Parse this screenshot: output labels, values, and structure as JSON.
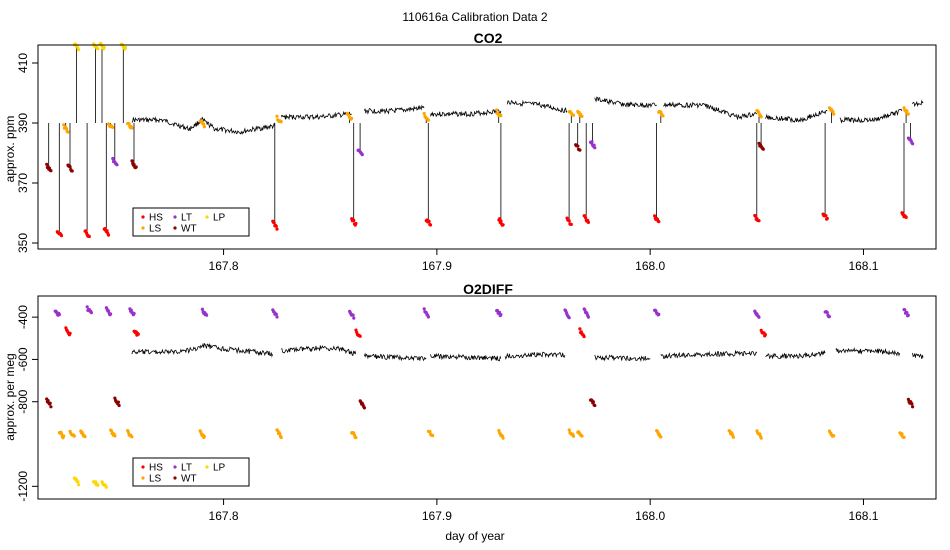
{
  "figure": {
    "suptitle": "110616a   Calibration Data 2"
  },
  "legend": {
    "entries": [
      {
        "label": "HS",
        "color": "#ff0000"
      },
      {
        "label": "LS",
        "color": "#ffa500"
      },
      {
        "label": "LT",
        "color": "#9932cc"
      },
      {
        "label": "WT",
        "color": "#8b0000"
      },
      {
        "label": "LP",
        "color": "#ffd700"
      }
    ]
  },
  "chart_data": [
    {
      "type": "line",
      "title": "CO2",
      "xlabel": "",
      "ylabel": "approx. ppm",
      "xlim": [
        167.713,
        168.134
      ],
      "ylim": [
        348,
        416
      ],
      "x_ticks": [
        167.8,
        167.9,
        168.0,
        168.1
      ],
      "x_tick_labels": [
        "167.8",
        "167.9",
        "168.0",
        "168.1"
      ],
      "y_ticks": [
        350,
        370,
        390,
        410
      ],
      "y_tick_labels": [
        "350",
        "370",
        "390",
        "410"
      ],
      "grid": false,
      "legend_position": "bottom-left",
      "ambient_segments": [
        {
          "x": [
            167.757,
            167.771,
            167.784,
            167.79,
            167.796,
            167.808,
            167.815,
            167.824
          ],
          "y": [
            391,
            391,
            388,
            391,
            388,
            387,
            388,
            389
          ]
        },
        {
          "x": [
            167.827,
            167.845,
            167.86
          ],
          "y": [
            392,
            392,
            393
          ]
        },
        {
          "x": [
            167.866,
            167.88,
            167.894
          ],
          "y": [
            394,
            394,
            395
          ]
        },
        {
          "x": [
            167.897,
            167.915,
            167.93
          ],
          "y": [
            393,
            393,
            394
          ]
        },
        {
          "x": [
            167.933,
            167.948,
            167.961
          ],
          "y": [
            397,
            396,
            394
          ]
        },
        {
          "x": [
            167.974,
            167.989,
            168.003
          ],
          "y": [
            398,
            396,
            396
          ]
        },
        {
          "x": [
            168.006,
            168.025,
            168.041,
            168.05
          ],
          "y": [
            396,
            396,
            392,
            393
          ]
        },
        {
          "x": [
            168.054,
            168.07,
            168.083
          ],
          "y": [
            392,
            391,
            394
          ]
        },
        {
          "x": [
            168.089,
            168.105,
            168.118
          ],
          "y": [
            391,
            391,
            394
          ]
        },
        {
          "x": [
            168.123,
            168.128
          ],
          "y": [
            396,
            397
          ]
        }
      ],
      "calibrations": [
        {
          "type": "WT",
          "x": 167.718,
          "y": 375
        },
        {
          "type": "HS",
          "x": 167.723,
          "y": 353
        },
        {
          "type": "LS",
          "x": 167.726,
          "y": 388
        },
        {
          "type": "WT",
          "x": 167.728,
          "y": 375
        },
        {
          "type": "LP",
          "x": 167.731,
          "y": 419
        },
        {
          "type": "HS",
          "x": 167.736,
          "y": 353
        },
        {
          "type": "LP",
          "x": 167.74,
          "y": 419
        },
        {
          "type": "LP",
          "x": 167.743,
          "y": 419
        },
        {
          "type": "HS",
          "x": 167.745,
          "y": 354
        },
        {
          "type": "LS",
          "x": 167.747,
          "y": 389
        },
        {
          "type": "LT",
          "x": 167.749,
          "y": 377
        },
        {
          "type": "LP",
          "x": 167.753,
          "y": 419
        },
        {
          "type": "LS",
          "x": 167.756,
          "y": 389
        },
        {
          "type": "WT",
          "x": 167.758,
          "y": 376
        },
        {
          "type": "LS",
          "x": 167.79,
          "y": 390
        },
        {
          "type": "HS",
          "x": 167.824,
          "y": 356
        },
        {
          "type": "LS",
          "x": 167.826,
          "y": 391
        },
        {
          "type": "LS",
          "x": 167.859,
          "y": 392
        },
        {
          "type": "HS",
          "x": 167.861,
          "y": 357
        },
        {
          "type": "LT",
          "x": 167.864,
          "y": 380
        },
        {
          "type": "LS",
          "x": 167.895,
          "y": 392
        },
        {
          "type": "HS",
          "x": 167.896,
          "y": 357
        },
        {
          "type": "LS",
          "x": 167.929,
          "y": 393
        },
        {
          "type": "HS",
          "x": 167.93,
          "y": 357
        },
        {
          "type": "HS",
          "x": 167.962,
          "y": 357
        },
        {
          "type": "LS",
          "x": 167.963,
          "y": 393
        },
        {
          "type": "WT",
          "x": 167.966,
          "y": 382
        },
        {
          "type": "LS",
          "x": 167.967,
          "y": 393
        },
        {
          "type": "HS",
          "x": 167.97,
          "y": 358
        },
        {
          "type": "LT",
          "x": 167.973,
          "y": 383
        },
        {
          "type": "HS",
          "x": 168.003,
          "y": 358
        },
        {
          "type": "LS",
          "x": 168.005,
          "y": 393
        },
        {
          "type": "HS",
          "x": 168.05,
          "y": 358
        },
        {
          "type": "LS",
          "x": 168.051,
          "y": 393
        },
        {
          "type": "WT",
          "x": 168.052,
          "y": 382
        },
        {
          "type": "HS",
          "x": 168.082,
          "y": 359
        },
        {
          "type": "LS",
          "x": 168.085,
          "y": 394
        },
        {
          "type": "HS",
          "x": 168.119,
          "y": 359
        },
        {
          "type": "LS",
          "x": 168.12,
          "y": 394
        },
        {
          "type": "LT",
          "x": 168.122,
          "y": 384
        }
      ]
    },
    {
      "type": "line",
      "title": "O2DIFF",
      "xlabel": "day of year",
      "ylabel": "approx. per meg",
      "xlim": [
        167.713,
        168.134
      ],
      "ylim": [
        -1260,
        -300
      ],
      "x_ticks": [
        167.8,
        167.9,
        168.0,
        168.1
      ],
      "x_tick_labels": [
        "167.8",
        "167.9",
        "168.0",
        "168.1"
      ],
      "y_ticks": [
        -1200,
        -800,
        -600,
        -400
      ],
      "y_tick_labels": [
        "-1200",
        "-800",
        "-600",
        "-400"
      ],
      "grid": false,
      "legend_position": "bottom-left",
      "ambient_segments": [
        {
          "x": [
            167.757,
            167.775,
            167.785,
            167.791,
            167.8,
            167.815,
            167.823
          ],
          "y": [
            -565,
            -565,
            -555,
            -535,
            -550,
            -565,
            -575
          ]
        },
        {
          "x": [
            167.827,
            167.845,
            167.855,
            167.862
          ],
          "y": [
            -560,
            -545,
            -550,
            -575
          ]
        },
        {
          "x": [
            167.866,
            167.88,
            167.895
          ],
          "y": [
            -585,
            -590,
            -595
          ]
        },
        {
          "x": [
            167.897,
            167.915,
            167.93
          ],
          "y": [
            -585,
            -590,
            -595
          ]
        },
        {
          "x": [
            167.932,
            167.948,
            167.96
          ],
          "y": [
            -585,
            -575,
            -580
          ]
        },
        {
          "x": [
            167.974,
            167.99,
            168.0
          ],
          "y": [
            -590,
            -595,
            -595
          ]
        },
        {
          "x": [
            168.005,
            168.03,
            168.05
          ],
          "y": [
            -585,
            -575,
            -570
          ]
        },
        {
          "x": [
            168.054,
            168.07,
            168.082
          ],
          "y": [
            -585,
            -585,
            -570
          ]
        },
        {
          "x": [
            168.087,
            168.105,
            168.117
          ],
          "y": [
            -560,
            -560,
            -570
          ]
        },
        {
          "x": [
            168.123,
            168.128
          ],
          "y": [
            -580,
            -590
          ]
        }
      ],
      "calibrations": [
        {
          "type": "WT",
          "x": 167.718,
          "y": -805
        },
        {
          "type": "LT",
          "x": 167.722,
          "y": -380
        },
        {
          "type": "LS",
          "x": 167.724,
          "y": -955
        },
        {
          "type": "HS",
          "x": 167.727,
          "y": -470
        },
        {
          "type": "LS",
          "x": 167.729,
          "y": -955
        },
        {
          "type": "LP",
          "x": 167.731,
          "y": -1175
        },
        {
          "type": "LS",
          "x": 167.734,
          "y": -955
        },
        {
          "type": "LT",
          "x": 167.737,
          "y": -370
        },
        {
          "type": "LP",
          "x": 167.74,
          "y": -1185
        },
        {
          "type": "LP",
          "x": 167.744,
          "y": -1190
        },
        {
          "type": "LT",
          "x": 167.746,
          "y": -375
        },
        {
          "type": "LS",
          "x": 167.748,
          "y": -950
        },
        {
          "type": "WT",
          "x": 167.75,
          "y": -800
        },
        {
          "type": "LS",
          "x": 167.756,
          "y": -955
        },
        {
          "type": "LT",
          "x": 167.757,
          "y": -375
        },
        {
          "type": "HS",
          "x": 167.759,
          "y": -475
        },
        {
          "type": "LS",
          "x": 167.79,
          "y": -955
        },
        {
          "type": "LT",
          "x": 167.791,
          "y": -380
        },
        {
          "type": "LT",
          "x": 167.824,
          "y": -380
        },
        {
          "type": "LS",
          "x": 167.826,
          "y": -950
        },
        {
          "type": "LT",
          "x": 167.86,
          "y": -385
        },
        {
          "type": "LS",
          "x": 167.861,
          "y": -955
        },
        {
          "type": "HS",
          "x": 167.863,
          "y": -480
        },
        {
          "type": "WT",
          "x": 167.865,
          "y": -810
        },
        {
          "type": "LT",
          "x": 167.895,
          "y": -380
        },
        {
          "type": "LS",
          "x": 167.897,
          "y": -950
        },
        {
          "type": "LT",
          "x": 167.929,
          "y": -380
        },
        {
          "type": "LS",
          "x": 167.93,
          "y": -955
        },
        {
          "type": "LT",
          "x": 167.961,
          "y": -385
        },
        {
          "type": "LS",
          "x": 167.963,
          "y": -950
        },
        {
          "type": "LS",
          "x": 167.967,
          "y": -955
        },
        {
          "type": "HS",
          "x": 167.968,
          "y": -475
        },
        {
          "type": "LT",
          "x": 167.97,
          "y": -380
        },
        {
          "type": "WT",
          "x": 167.973,
          "y": -800
        },
        {
          "type": "LT",
          "x": 168.003,
          "y": -380
        },
        {
          "type": "LS",
          "x": 168.004,
          "y": -955
        },
        {
          "type": "LS",
          "x": 168.038,
          "y": -950
        },
        {
          "type": "LT",
          "x": 168.05,
          "y": -385
        },
        {
          "type": "LS",
          "x": 168.051,
          "y": -955
        },
        {
          "type": "HS",
          "x": 168.053,
          "y": -475
        },
        {
          "type": "LT",
          "x": 168.083,
          "y": -385
        },
        {
          "type": "LS",
          "x": 168.085,
          "y": -955
        },
        {
          "type": "LS",
          "x": 168.118,
          "y": -955
        },
        {
          "type": "LT",
          "x": 168.12,
          "y": -380
        },
        {
          "type": "WT",
          "x": 168.122,
          "y": -805
        }
      ]
    }
  ]
}
